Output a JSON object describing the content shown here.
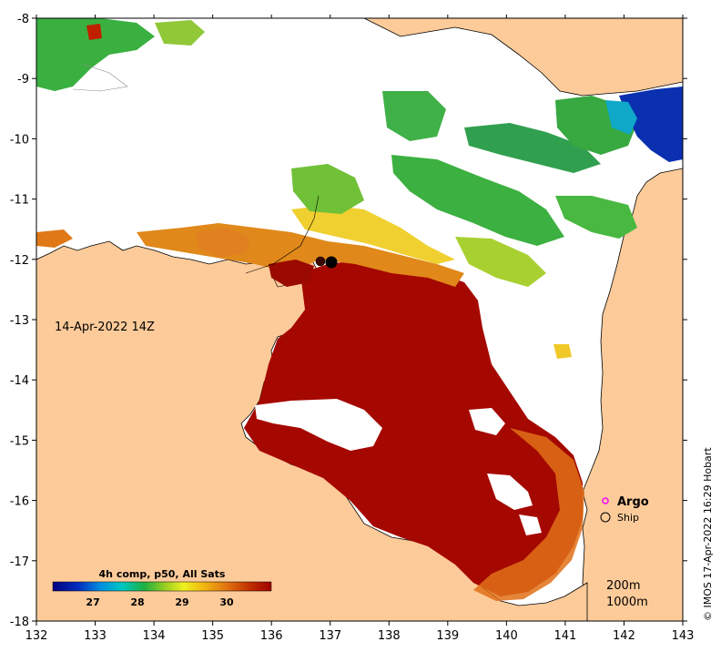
{
  "map": {
    "date_label": "14-Apr-2022 14Z",
    "credit": "© IMOS 17-Apr-2022 16:29 Hobart",
    "x_ticks": [
      "132",
      "133",
      "134",
      "135",
      "136",
      "137",
      "138",
      "139",
      "140",
      "141",
      "142",
      "143"
    ],
    "y_ticks": [
      "-8",
      "-9",
      "-10",
      "-11",
      "-12",
      "-13",
      "-14",
      "-15",
      "-16",
      "-17",
      "-18"
    ],
    "lon_range": [
      132,
      143
    ],
    "lat_range": [
      -18,
      -8
    ],
    "land_color": "#fdcb9a",
    "nodata_color": "#ffffff"
  },
  "legend": {
    "argo_label": "Argo",
    "ship_label": "Ship",
    "argo_color": "#ff00ff"
  },
  "colorbar": {
    "title": "4h comp, p50, All Sats",
    "ticks": [
      "27",
      "28",
      "29",
      "30"
    ],
    "range": [
      26.1,
      31.0
    ]
  },
  "contours": {
    "c200": "200m",
    "c1000": "1000m"
  }
}
